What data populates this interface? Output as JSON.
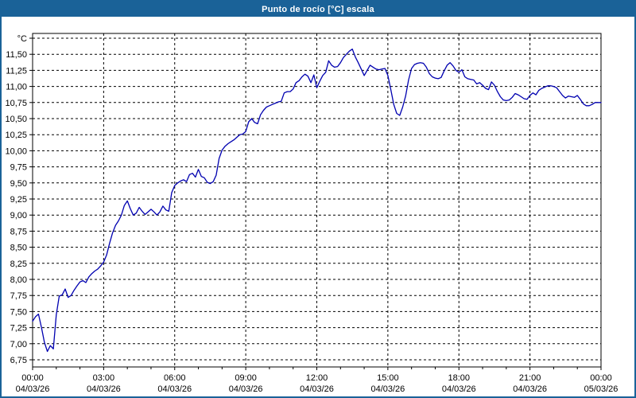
{
  "window": {
    "title": "Punto de rocío [°C] escala"
  },
  "colors": {
    "titlebar": "#1a6298",
    "frame_border": "#1a6298",
    "plot_border": "#000000",
    "grid": "#000000",
    "line": "#0000b0",
    "background": "#ffffff",
    "label_text": "#000000",
    "title_text": "#ffffff"
  },
  "chart_data": {
    "type": "line",
    "title": "Punto de rocío [°C] escala",
    "ylabel": "°C",
    "ylim": [
      6.75,
      11.75
    ],
    "y_tick_step": 0.25,
    "grid": "dashed",
    "legend": "none",
    "decimal_separator": ",",
    "y_ticks": [
      {
        "value": 11.75,
        "label": ""
      },
      {
        "value": 11.5,
        "label": "11,50"
      },
      {
        "value": 11.25,
        "label": "11,25"
      },
      {
        "value": 11.0,
        "label": "11,00"
      },
      {
        "value": 10.75,
        "label": "10,75"
      },
      {
        "value": 10.5,
        "label": "10,50"
      },
      {
        "value": 10.25,
        "label": "10,25"
      },
      {
        "value": 10.0,
        "label": "10,00"
      },
      {
        "value": 9.75,
        "label": "9,75"
      },
      {
        "value": 9.5,
        "label": "9,50"
      },
      {
        "value": 9.25,
        "label": "9,25"
      },
      {
        "value": 9.0,
        "label": "9,00"
      },
      {
        "value": 8.75,
        "label": "8,75"
      },
      {
        "value": 8.5,
        "label": "8,50"
      },
      {
        "value": 8.25,
        "label": "8,25"
      },
      {
        "value": 8.0,
        "label": "8,00"
      },
      {
        "value": 7.75,
        "label": "7,75"
      },
      {
        "value": 7.5,
        "label": "7,50"
      },
      {
        "value": 7.25,
        "label": "7,25"
      },
      {
        "value": 7.0,
        "label": "7,00"
      },
      {
        "value": 6.75,
        "label": "6,75"
      }
    ],
    "x_ticks": [
      {
        "hour": 0,
        "time": "00:00",
        "date": "04/03/26"
      },
      {
        "hour": 3,
        "time": "03:00",
        "date": "04/03/26"
      },
      {
        "hour": 6,
        "time": "06:00",
        "date": "04/03/26"
      },
      {
        "hour": 9,
        "time": "09:00",
        "date": "04/03/26"
      },
      {
        "hour": 12,
        "time": "12:00",
        "date": "04/03/26"
      },
      {
        "hour": 15,
        "time": "15:00",
        "date": "04/03/26"
      },
      {
        "hour": 18,
        "time": "18:00",
        "date": "04/03/26"
      },
      {
        "hour": 21,
        "time": "21:00",
        "date": "04/03/26"
      },
      {
        "hour": 24,
        "time": "00:00",
        "date": "05/03/26"
      }
    ],
    "x_span_hours": 24,
    "interval_hours": 0.125,
    "series": [
      {
        "name": "Punto de rocío",
        "values": [
          7.35,
          7.42,
          7.46,
          7.25,
          7.02,
          6.88,
          6.97,
          6.92,
          7.45,
          7.74,
          7.76,
          7.85,
          7.72,
          7.75,
          7.83,
          7.9,
          7.96,
          7.98,
          7.95,
          8.04,
          8.09,
          8.13,
          8.16,
          8.21,
          8.27,
          8.38,
          8.56,
          8.72,
          8.84,
          8.91,
          9.0,
          9.15,
          9.22,
          9.1,
          9.0,
          9.03,
          9.12,
          9.06,
          9.01,
          9.05,
          9.09,
          9.05,
          9.0,
          9.05,
          9.14,
          9.08,
          9.06,
          9.35,
          9.46,
          9.5,
          9.53,
          9.55,
          9.52,
          9.63,
          9.65,
          9.59,
          9.71,
          9.6,
          9.58,
          9.51,
          9.49,
          9.52,
          9.62,
          9.88,
          10.01,
          10.07,
          10.11,
          10.14,
          10.17,
          10.21,
          10.25,
          10.26,
          10.3,
          10.45,
          10.5,
          10.44,
          10.42,
          10.56,
          10.63,
          10.68,
          10.7,
          10.72,
          10.74,
          10.76,
          10.77,
          10.9,
          10.92,
          10.92,
          10.96,
          11.06,
          11.09,
          11.15,
          11.19,
          11.16,
          11.06,
          11.18,
          10.98,
          11.08,
          11.17,
          11.22,
          11.4,
          11.33,
          11.3,
          11.31,
          11.37,
          11.45,
          11.5,
          11.55,
          11.58,
          11.46,
          11.37,
          11.27,
          11.17,
          11.25,
          11.33,
          11.3,
          11.27,
          11.26,
          11.27,
          11.28,
          11.17,
          10.95,
          10.72,
          10.58,
          10.55,
          10.68,
          10.85,
          11.1,
          11.28,
          11.34,
          11.36,
          11.37,
          11.36,
          11.3,
          11.2,
          11.15,
          11.13,
          11.12,
          11.14,
          11.24,
          11.33,
          11.37,
          11.32,
          11.25,
          11.22,
          11.26,
          11.15,
          11.12,
          11.11,
          11.1,
          11.04,
          11.06,
          11.02,
          10.97,
          10.95,
          11.07,
          11.02,
          10.92,
          10.84,
          10.79,
          10.78,
          10.79,
          10.83,
          10.89,
          10.87,
          10.84,
          10.81,
          10.8,
          10.86,
          10.9,
          10.87,
          10.94,
          10.97,
          10.99,
          11.01,
          11.01,
          11.0,
          10.98,
          10.92,
          10.86,
          10.82,
          10.85,
          10.84,
          10.83,
          10.86,
          10.8,
          10.73,
          10.7,
          10.7,
          10.72,
          10.75,
          10.75,
          10.75
        ]
      }
    ]
  }
}
